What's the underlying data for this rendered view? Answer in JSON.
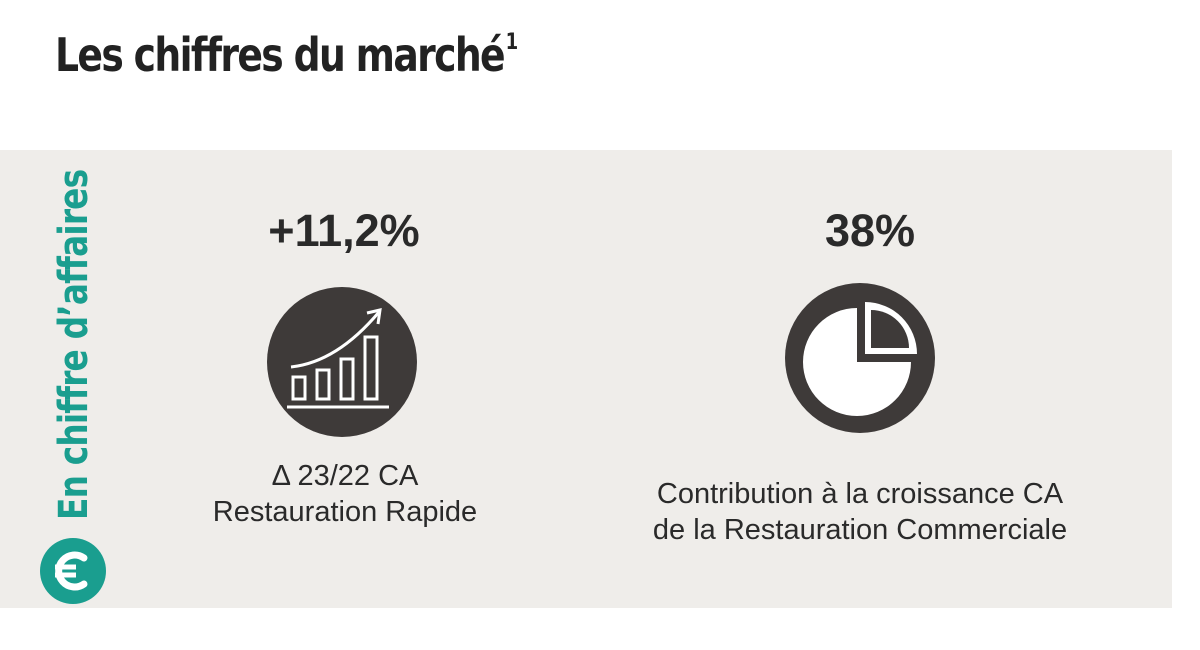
{
  "header": {
    "title": "Les chiffres du marché",
    "footnote_marker": "1"
  },
  "section": {
    "side_label": "En chiffre d’affaires",
    "badge_icon": "euro-icon",
    "accent_color": "#1a9e8f"
  },
  "stats": [
    {
      "value": "+11,2%",
      "icon": "growth-bar-chart-icon",
      "caption_line1": "Δ 23/22 CA",
      "caption_line2": "Restauration Rapide"
    },
    {
      "value": "38%",
      "icon": "pie-chart-icon",
      "caption_line1": "Contribution à la croissance CA",
      "caption_line2": "de la Restauration Commerciale"
    }
  ]
}
